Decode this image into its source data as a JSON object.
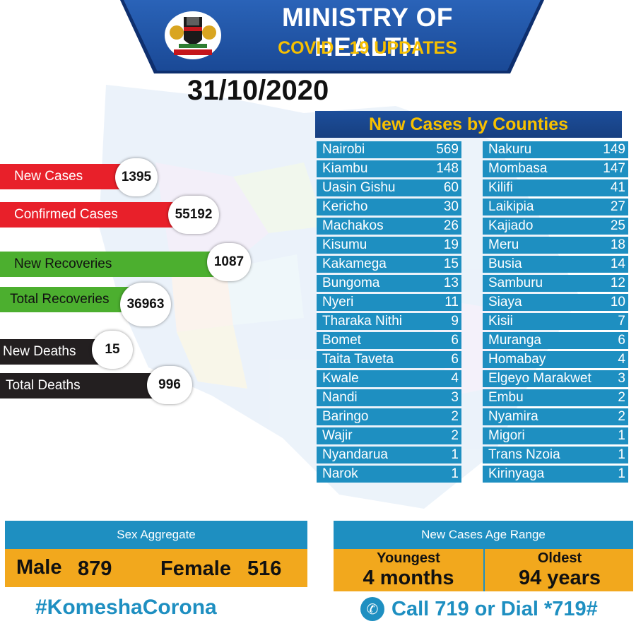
{
  "header": {
    "title": "MINISTRY OF HEALTH",
    "subtitle": "COVID - 19 UPDATES",
    "date": "31/10/2020"
  },
  "stats": {
    "new_cases": {
      "label": "New Cases",
      "value": "1395"
    },
    "confirmed_cases": {
      "label": "Confirmed Cases",
      "value": "55192"
    },
    "new_recoveries": {
      "label": "New Recoveries",
      "value": "1087"
    },
    "total_recoveries": {
      "label": "Total Recoveries",
      "value": "36963"
    },
    "new_deaths": {
      "label": "New Deaths",
      "value": "15"
    },
    "total_deaths": {
      "label": "Total Deaths",
      "value": "996"
    }
  },
  "counties": {
    "heading": "New Cases by Counties",
    "left": [
      {
        "name": "Nairobi",
        "value": "569"
      },
      {
        "name": "Kiambu",
        "value": "148"
      },
      {
        "name": "Uasin Gishu",
        "value": "60"
      },
      {
        "name": "Kericho",
        "value": "30"
      },
      {
        "name": "Machakos",
        "value": "26"
      },
      {
        "name": "Kisumu",
        "value": "19"
      },
      {
        "name": "Kakamega",
        "value": "15"
      },
      {
        "name": "Bungoma",
        "value": "13"
      },
      {
        "name": "Nyeri",
        "value": "11"
      },
      {
        "name": "Tharaka Nithi",
        "value": "9"
      },
      {
        "name": "Bomet",
        "value": "6"
      },
      {
        "name": "Taita Taveta",
        "value": "6"
      },
      {
        "name": "Kwale",
        "value": "4"
      },
      {
        "name": "Nandi",
        "value": "3"
      },
      {
        "name": "Baringo",
        "value": "2"
      },
      {
        "name": "Wajir",
        "value": "2"
      },
      {
        "name": "Nyandarua",
        "value": "1"
      },
      {
        "name": "Narok",
        "value": "1"
      }
    ],
    "right": [
      {
        "name": "Nakuru",
        "value": "149"
      },
      {
        "name": "Mombasa",
        "value": "147"
      },
      {
        "name": "Kilifi",
        "value": "41"
      },
      {
        "name": "Laikipia",
        "value": "27"
      },
      {
        "name": "Kajiado",
        "value": "25"
      },
      {
        "name": "Meru",
        "value": "18"
      },
      {
        "name": "Busia",
        "value": "14"
      },
      {
        "name": "Samburu",
        "value": "12"
      },
      {
        "name": "Siaya",
        "value": "10"
      },
      {
        "name": "Kisii",
        "value": "7"
      },
      {
        "name": "Muranga",
        "value": "6"
      },
      {
        "name": "Homabay",
        "value": "4"
      },
      {
        "name": "Elgeyo Marakwet",
        "value": "3"
      },
      {
        "name": "Embu",
        "value": "2"
      },
      {
        "name": "Nyamira",
        "value": "2"
      },
      {
        "name": "Migori",
        "value": "1"
      },
      {
        "name": "Trans Nzoia",
        "value": "1"
      },
      {
        "name": "Kirinyaga",
        "value": "1"
      }
    ]
  },
  "sex_aggregate": {
    "heading": "Sex Aggregate",
    "male_label": "Male",
    "male_value": "879",
    "female_label": "Female",
    "female_value": "516"
  },
  "age_range": {
    "heading": "New Cases Age Range",
    "youngest_label": "Youngest",
    "youngest_value": "4 months",
    "oldest_label": "Oldest",
    "oldest_value": "94 years"
  },
  "footer": {
    "hashtag": "#KomeshaCorona",
    "call": "Call  719 or Dial *719#"
  },
  "colors": {
    "banner_blue": "#1a4996",
    "accent_yellow": "#f7c000",
    "row_blue": "#1e8fc1",
    "red": "#e8202a",
    "green": "#4caf2f",
    "black": "#231f20",
    "orange": "#f2a81d"
  },
  "icons": {
    "coat_of_arms": "coat-of-arms-icon",
    "phone": "phone-icon"
  }
}
